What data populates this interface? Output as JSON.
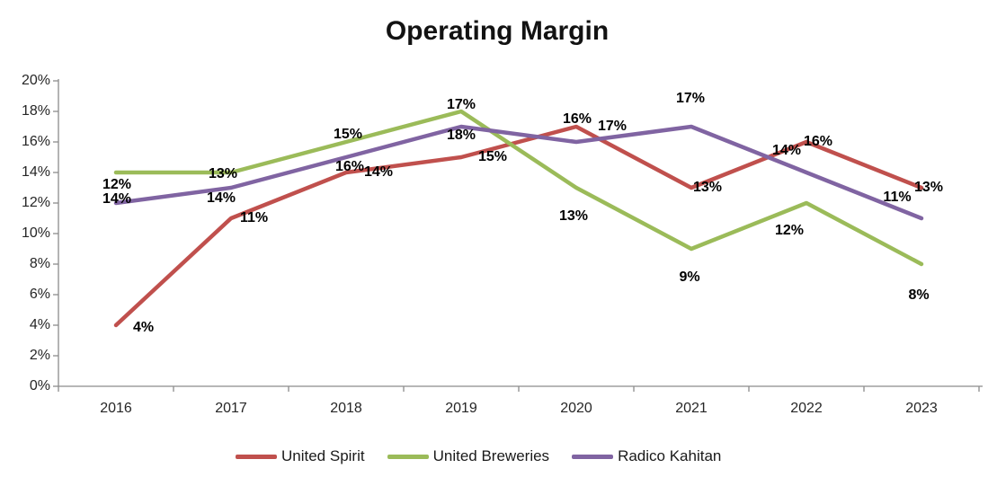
{
  "chart_data": {
    "type": "line",
    "title": "Operating Margin",
    "categories": [
      "2016",
      "2017",
      "2018",
      "2019",
      "2020",
      "2021",
      "2022",
      "2023"
    ],
    "series": [
      {
        "name": "United Spirit",
        "color": "#C0504D",
        "values": [
          4,
          11,
          14,
          15,
          17,
          13,
          16,
          13
        ],
        "labels": [
          "4%",
          "11%",
          "14%",
          "15%",
          "17%",
          "13%",
          "16%",
          "13%"
        ],
        "label_position": "right",
        "label_nudges": [
          [
            5,
            3
          ],
          [
            -4,
            0
          ],
          [
            6,
            0
          ],
          [
            5,
            0
          ],
          [
            10,
            0
          ],
          [
            -12,
            0
          ],
          [
            -17,
            0
          ],
          [
            -22,
            0
          ]
        ]
      },
      {
        "name": "United Breweries",
        "color": "#9BBB59",
        "values": [
          14,
          14,
          16,
          18,
          13,
          9,
          12,
          8
        ],
        "labels": [
          "14%",
          "14%",
          "16%",
          "18%",
          "13%",
          "9%",
          "12%",
          "8%"
        ],
        "label_position": "below",
        "label_nudges": [
          [
            1,
            0
          ],
          [
            -11,
            -1
          ],
          [
            4,
            -2
          ],
          [
            0,
            -3
          ],
          [
            -3,
            2
          ],
          [
            -2,
            2
          ],
          [
            -19,
            1
          ],
          [
            -3,
            5
          ]
        ]
      },
      {
        "name": "Radico Kahitan",
        "color": "#8064A2",
        "values": [
          12,
          13,
          15,
          17,
          16,
          17,
          14,
          11
        ],
        "labels": [
          "12%",
          "13%",
          "15%",
          "17%",
          "16%",
          "17%",
          "14%",
          "11%"
        ],
        "label_position": "above",
        "label_nudges": [
          [
            1,
            4
          ],
          [
            -9,
            9
          ],
          [
            2,
            -1
          ],
          [
            0,
            0
          ],
          [
            1,
            -1
          ],
          [
            -1,
            -7
          ],
          [
            -22,
            0
          ],
          [
            -27,
            1
          ]
        ]
      }
    ],
    "ylabel_ticks": [
      "0%",
      "2%",
      "4%",
      "6%",
      "8%",
      "10%",
      "12%",
      "14%",
      "16%",
      "18%",
      "20%"
    ],
    "ylim": [
      0,
      20
    ],
    "ytick_step": 2,
    "xlabel": "",
    "ylabel": "",
    "grid": false,
    "legend_position": "bottom",
    "axis_color": "#8C8C8C"
  }
}
